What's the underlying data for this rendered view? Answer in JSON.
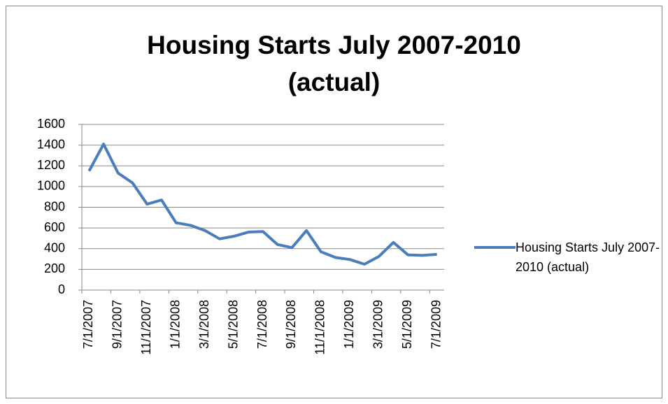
{
  "chart_data": {
    "type": "line",
    "title": "Housing Starts July 2007-2010 (actual)",
    "categories": [
      "7/1/2007",
      null,
      "9/1/2007",
      null,
      "11/1/2007",
      null,
      "1/1/2008",
      null,
      "3/1/2008",
      null,
      "5/1/2008",
      null,
      "7/1/2008",
      null,
      "9/1/2008",
      null,
      "11/1/2008",
      null,
      "1/1/2009",
      null,
      "3/1/2009",
      null,
      "5/1/2009",
      null,
      "7/1/2009"
    ],
    "series": [
      {
        "name": "Housing Starts July 2007-2010 (actual)",
        "color": "#4a7ebb",
        "values": [
          1150,
          1410,
          1130,
          1035,
          830,
          870,
          650,
          625,
          575,
          495,
          520,
          560,
          565,
          440,
          410,
          575,
          370,
          315,
          295,
          250,
          325,
          460,
          340,
          335,
          345
        ]
      }
    ],
    "ylim": [
      0,
      1600
    ],
    "yticks": [
      0,
      200,
      400,
      600,
      800,
      1000,
      1200,
      1400,
      1600
    ],
    "grid": true,
    "legend": "right"
  }
}
